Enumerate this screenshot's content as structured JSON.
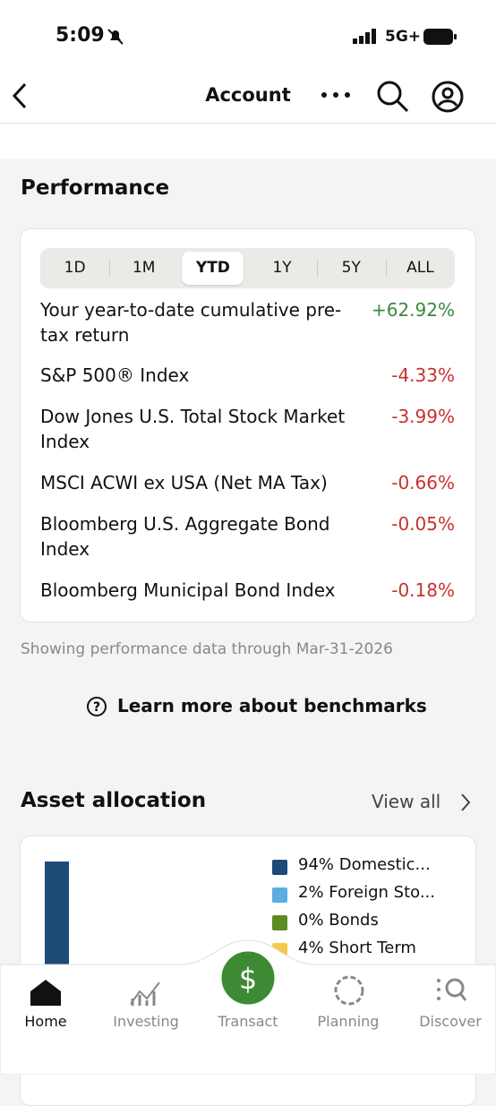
{
  "status_bar": {
    "time": "5:09",
    "network": "5G+"
  },
  "header": {
    "title": "Account"
  },
  "performance": {
    "title": "Performance",
    "tabs": [
      "1D",
      "1M",
      "YTD",
      "1Y",
      "5Y",
      "ALL"
    ],
    "active_tab": 2,
    "rows": [
      {
        "label": "Your year-to-date cumulative pre-tax return",
        "value": "+62.92%",
        "color": "#3b8a3a"
      },
      {
        "label": "S&P 500® Index",
        "value": "-4.33%",
        "color": "#c8312c"
      },
      {
        "label": "Dow Jones U.S. Total Stock Market Index",
        "value": "-3.99%",
        "color": "#c8312c"
      },
      {
        "label": "MSCI ACWI ex USA (Net MA Tax)",
        "value": "-0.66%",
        "color": "#c8312c"
      },
      {
        "label": "Bloomberg U.S. Aggregate Bond Index",
        "value": "-0.05%",
        "color": "#c8312c"
      },
      {
        "label": "Bloomberg Municipal Bond Index",
        "value": "-0.18%",
        "color": "#c8312c"
      }
    ],
    "note": "Showing performance data through Mar-31-2026",
    "link": "Learn more about benchmarks"
  },
  "asset_allocation": {
    "title": "Asset allocation",
    "view_all": "View all",
    "legend": [
      {
        "label": "94% Domestic...",
        "color": "#1e4a78"
      },
      {
        "label": "2% Foreign Sto...",
        "color": "#5aafe0"
      },
      {
        "label": "0% Bonds",
        "color": "#5e8a23"
      },
      {
        "label": "4% Short Term",
        "color": "#f2c94c"
      }
    ]
  },
  "nav": {
    "items": [
      "Home",
      "Investing",
      "Transact",
      "Planning",
      "Discover"
    ],
    "active": 0
  }
}
